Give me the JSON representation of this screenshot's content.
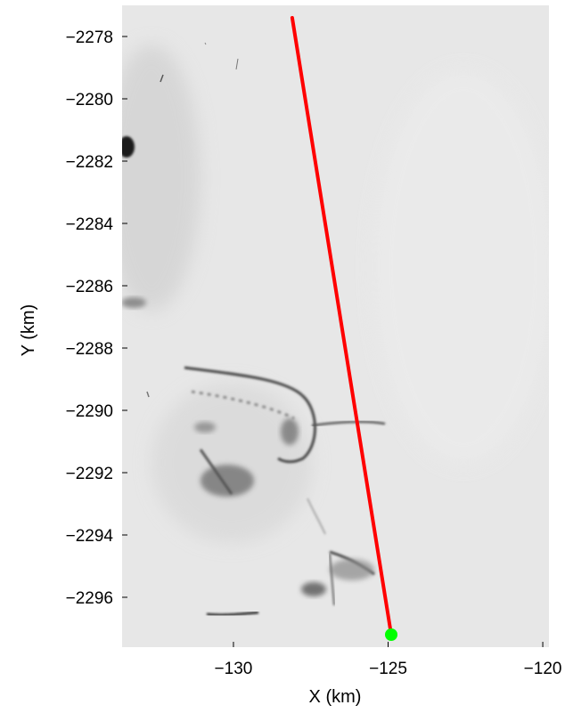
{
  "chart_data": {
    "type": "line",
    "title": "",
    "xlabel": "X (km)",
    "ylabel": "Y (km)",
    "xlim": [
      -133.6,
      -119.8
    ],
    "ylim": [
      -2297.6,
      -2277.0
    ],
    "xticks": [
      -130,
      -125,
      -120
    ],
    "xtick_labels": [
      "−130",
      "−125",
      "−120"
    ],
    "yticks": [
      -2278,
      -2280,
      -2282,
      -2284,
      -2286,
      -2288,
      -2290,
      -2292,
      -2294,
      -2296
    ],
    "ytick_labels": [
      "−2278",
      "−2280",
      "−2282",
      "−2284",
      "−2286",
      "−2288",
      "−2290",
      "−2292",
      "−2294",
      "−2296"
    ],
    "grid": false,
    "background": "grayscale satellite imagery",
    "series": [
      {
        "type": "line",
        "color": "#ff0000",
        "x": [
          -128.1,
          -124.9
        ],
        "y": [
          -2277.4,
          -2297.2
        ]
      },
      {
        "type": "scatter",
        "color": "#00ff00",
        "marker": "circle",
        "x": [
          -124.9
        ],
        "y": [
          -2297.2
        ]
      }
    ]
  }
}
